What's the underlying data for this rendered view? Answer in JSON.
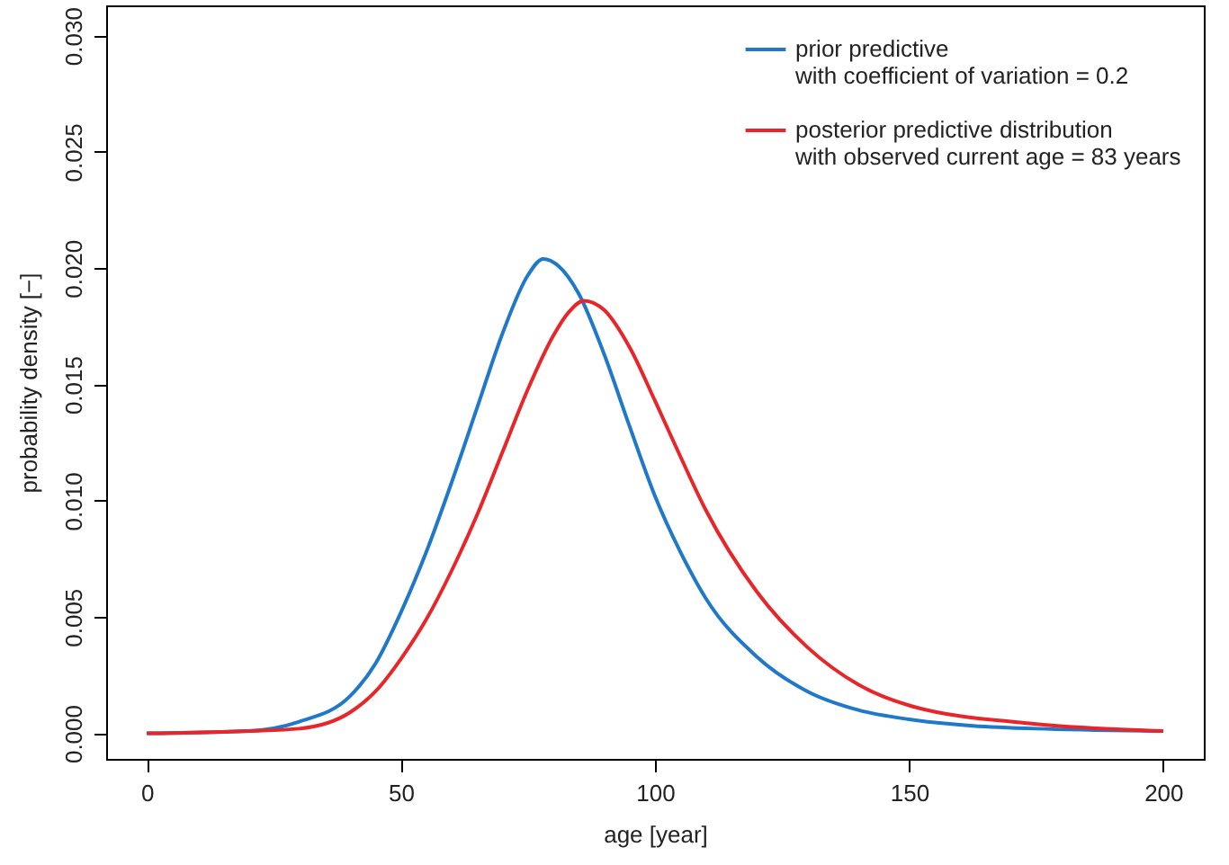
{
  "chart_data": {
    "type": "line",
    "xlabel": "age [year]",
    "ylabel": "probability density [−]",
    "xlim": [
      -8,
      208
    ],
    "xticks": [
      0,
      50,
      100,
      150,
      200
    ],
    "ylim": [
      -0.0011,
      0.0313
    ],
    "yticks": [
      {
        "value": 0,
        "label": "0.000"
      },
      {
        "value": 0.005,
        "label": "0.005"
      },
      {
        "value": 0.01,
        "label": "0.010"
      },
      {
        "value": 0.015,
        "label": "0.015"
      },
      {
        "value": 0.02,
        "label": "0.020"
      },
      {
        "value": 0.025,
        "label": "0.025"
      },
      {
        "value": 0.03,
        "label": "0.030"
      }
    ],
    "x": [
      0,
      20,
      30,
      40,
      45,
      50,
      55,
      60,
      65,
      70,
      75,
      78,
      81,
      85,
      90,
      95,
      100,
      105,
      110,
      120,
      130,
      140,
      150,
      175,
      200
    ],
    "series": [
      {
        "name": "prior predictive\nwith coefficient of variation = 0.2",
        "color": "#1f78c8",
        "values": [
          0,
          0.0001,
          0.0005,
          0.0016,
          0.003,
          0.0052,
          0.0078,
          0.0108,
          0.014,
          0.0172,
          0.0197,
          0.0204,
          0.0201,
          0.0189,
          0.0163,
          0.0132,
          0.0102,
          0.0078,
          0.0058,
          0.0033,
          0.0018,
          0.001,
          0.0006,
          0.0002,
          0.0001
        ]
      },
      {
        "name": "posterior predictive distribution\nwith observed current age = 83 years",
        "color": "#e8262a",
        "x": [
          0,
          20,
          30,
          40,
          45,
          50,
          55,
          60,
          65,
          70,
          75,
          80,
          83,
          86,
          90,
          95,
          100,
          105,
          110,
          120,
          130,
          140,
          150,
          175,
          200
        ],
        "values": [
          0,
          0.0001,
          0.0002,
          0.0009,
          0.0018,
          0.0032,
          0.0049,
          0.007,
          0.0094,
          0.0121,
          0.0148,
          0.0171,
          0.0181,
          0.0186,
          0.0182,
          0.0166,
          0.0143,
          0.0119,
          0.0096,
          0.0061,
          0.0037,
          0.0021,
          0.0012,
          0.0004,
          0.0001
        ]
      }
    ],
    "grid": false,
    "legend": "top right",
    "line_style": "solid",
    "marker": "none"
  }
}
